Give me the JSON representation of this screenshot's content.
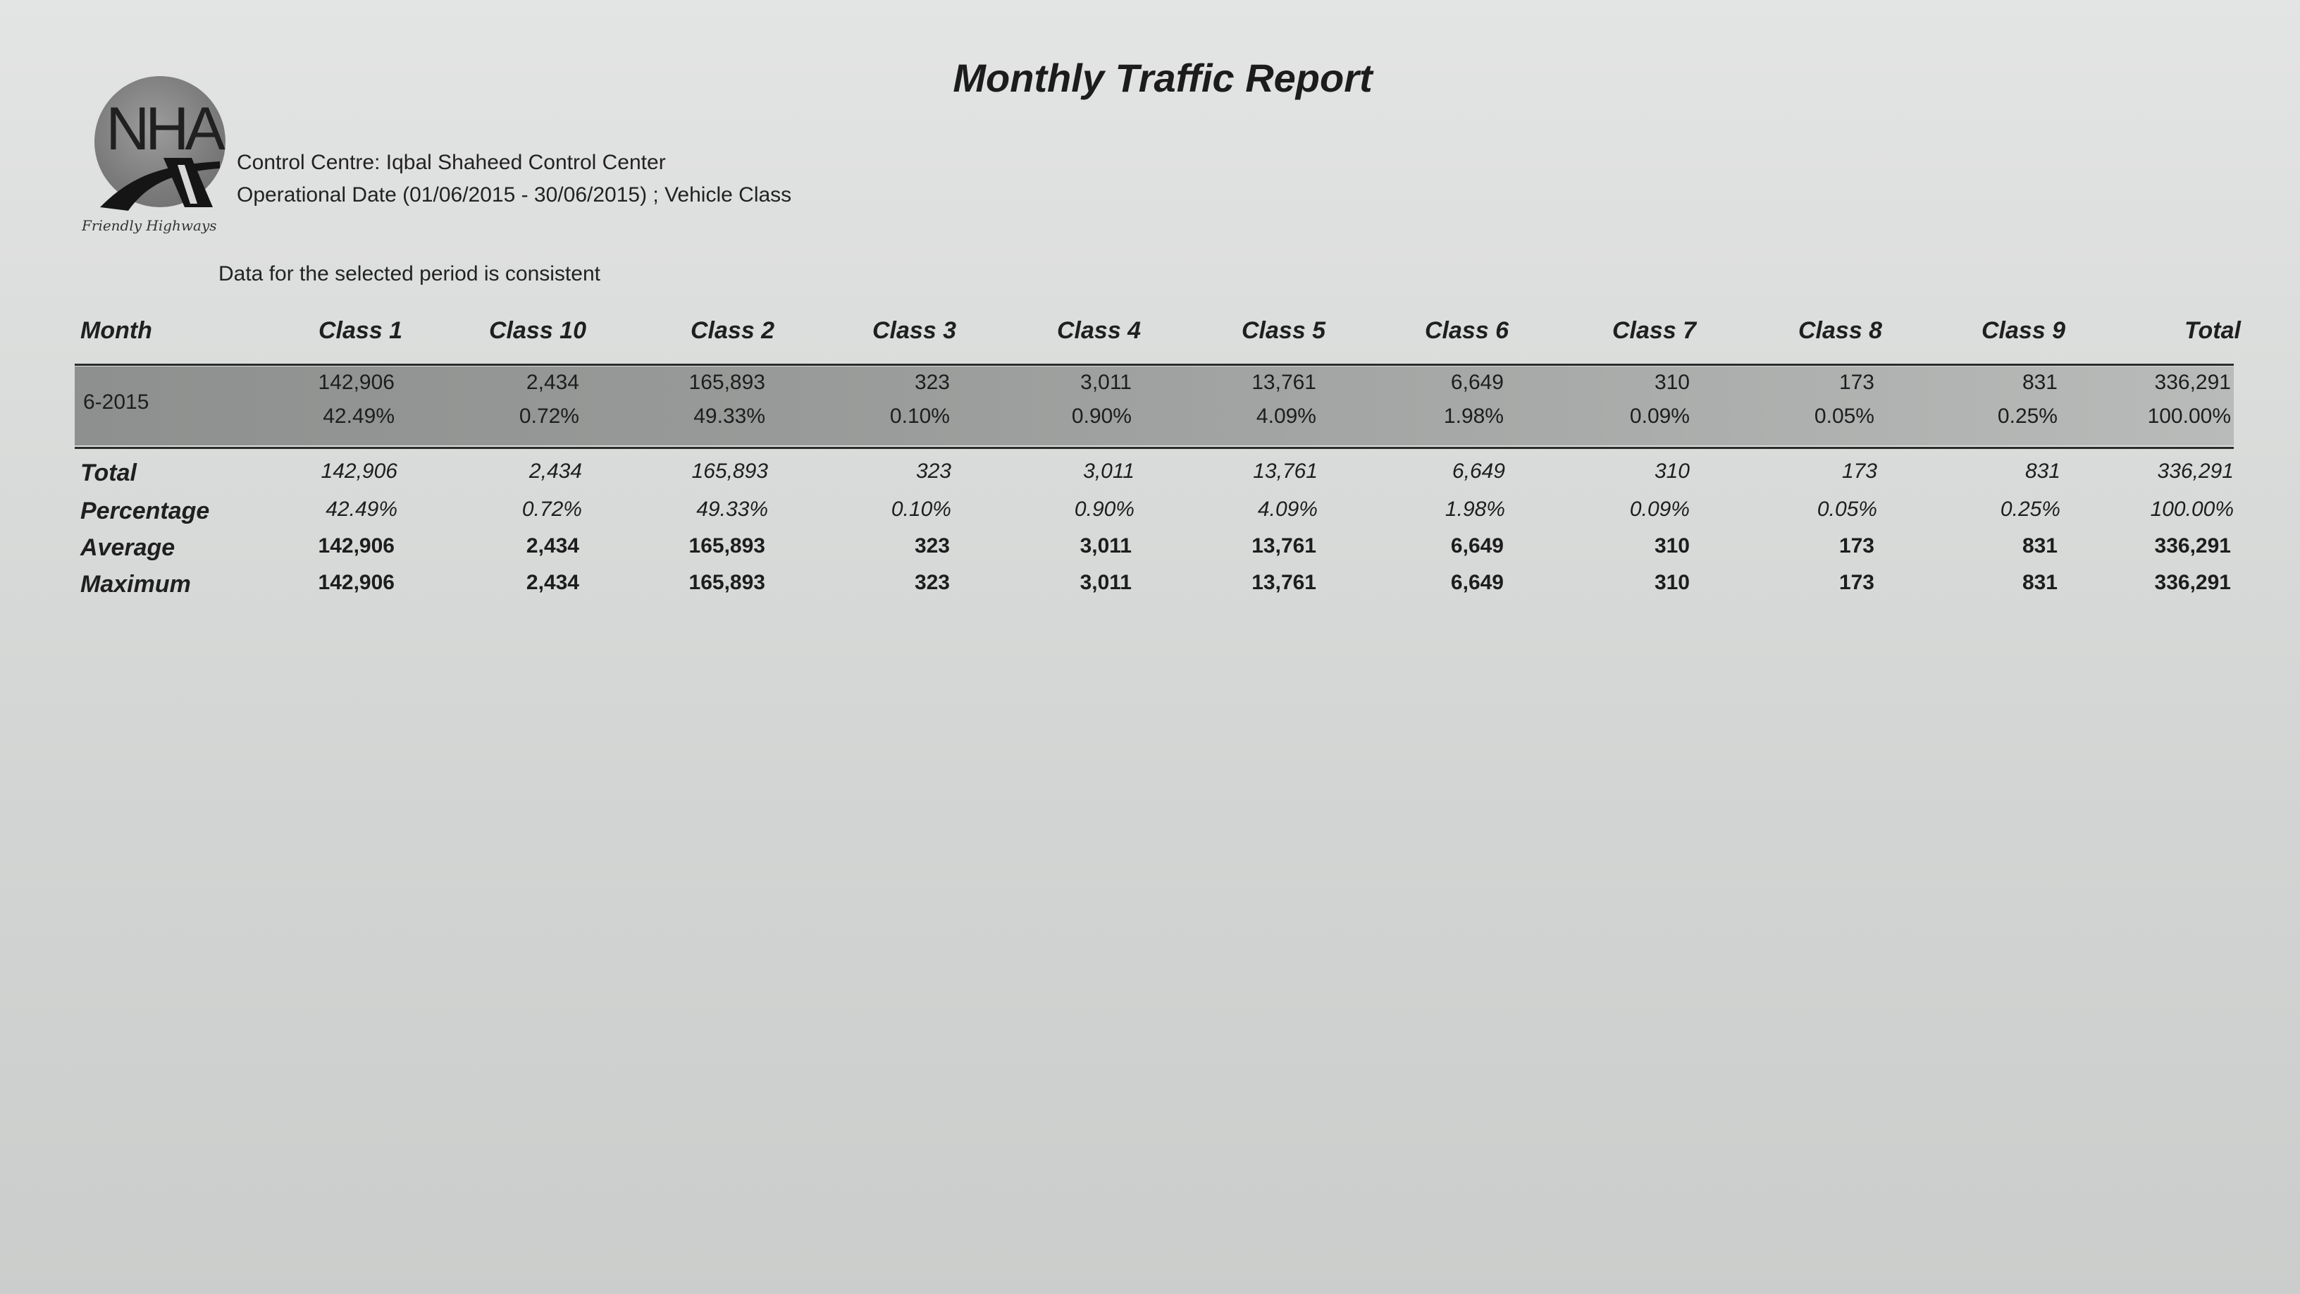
{
  "report": {
    "title": "Monthly Traffic Report",
    "control_centre": "Control Centre: Iqbal Shaheed Control Center",
    "operational_date": "Operational Date (01/06/2015 - 30/06/2015) ; Vehicle Class",
    "consistency_note": "Data for the selected period is consistent"
  },
  "logo": {
    "text": "NHA",
    "tagline": "Friendly Highways"
  },
  "table": {
    "columns": [
      "Month",
      "Class 1",
      "Class 10",
      "Class 2",
      "Class 3",
      "Class 4",
      "Class 5",
      "Class 6",
      "Class 7",
      "Class 8",
      "Class 9",
      "Total"
    ],
    "rows": [
      {
        "month": "6-2015",
        "counts": [
          "142,906",
          "2,434",
          "165,893",
          "323",
          "3,011",
          "13,761",
          "6,649",
          "310",
          "173",
          "831",
          "336,291"
        ],
        "percentages": [
          "42.49%",
          "0.72%",
          "49.33%",
          "0.10%",
          "0.90%",
          "4.09%",
          "1.98%",
          "0.09%",
          "0.05%",
          "0.25%",
          "100.00%"
        ]
      }
    ],
    "summary": [
      {
        "label": "Total",
        "values": [
          "142,906",
          "2,434",
          "165,893",
          "323",
          "3,011",
          "13,761",
          "6,649",
          "310",
          "173",
          "831",
          "336,291"
        ]
      },
      {
        "label": "Percentage",
        "values": [
          "42.49%",
          "0.72%",
          "49.33%",
          "0.10%",
          "0.90%",
          "4.09%",
          "1.98%",
          "0.09%",
          "0.05%",
          "0.25%",
          "100.00%"
        ]
      },
      {
        "label": "Average",
        "values": [
          "142,906",
          "2,434",
          "165,893",
          "323",
          "3,011",
          "13,761",
          "6,649",
          "310",
          "173",
          "831",
          "336,291"
        ]
      },
      {
        "label": "Maximum",
        "values": [
          "142,906",
          "2,434",
          "165,893",
          "323",
          "3,011",
          "13,761",
          "6,649",
          "310",
          "173",
          "831",
          "336,291"
        ]
      }
    ]
  }
}
